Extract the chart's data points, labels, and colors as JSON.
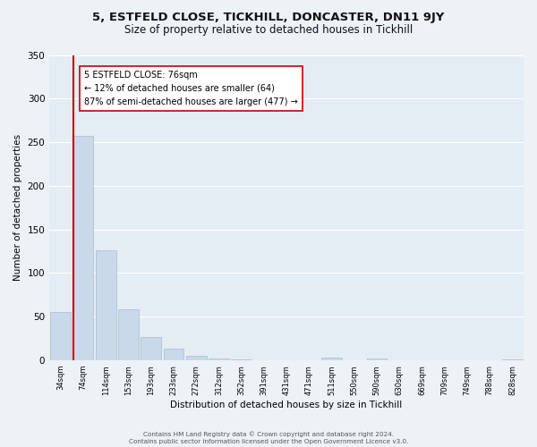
{
  "title": "5, ESTFELD CLOSE, TICKHILL, DONCASTER, DN11 9JY",
  "subtitle": "Size of property relative to detached houses in Tickhill",
  "xlabel": "Distribution of detached houses by size in Tickhill",
  "ylabel": "Number of detached properties",
  "bar_labels": [
    "34sqm",
    "74sqm",
    "114sqm",
    "153sqm",
    "193sqm",
    "233sqm",
    "272sqm",
    "312sqm",
    "352sqm",
    "391sqm",
    "431sqm",
    "471sqm",
    "511sqm",
    "550sqm",
    "590sqm",
    "630sqm",
    "669sqm",
    "709sqm",
    "749sqm",
    "788sqm",
    "828sqm"
  ],
  "bar_values": [
    55,
    257,
    126,
    58,
    27,
    13,
    5,
    2,
    1,
    0,
    0,
    0,
    3,
    0,
    2,
    0,
    0,
    0,
    0,
    0,
    1
  ],
  "bar_color": "#c9d9ea",
  "bar_edge_color": "#aabccc",
  "ylim": [
    0,
    350
  ],
  "yticks": [
    0,
    50,
    100,
    150,
    200,
    250,
    300,
    350
  ],
  "property_line_color": "#cc0000",
  "annotation_line1": "5 ESTFELD CLOSE: 76sqm",
  "annotation_line2": "← 12% of detached houses are smaller (64)",
  "annotation_line3": "87% of semi-detached houses are larger (477) →",
  "annotation_box_color": "#ffffff",
  "annotation_box_edge": "#cc0000",
  "footer_line1": "Contains HM Land Registry data © Crown copyright and database right 2024.",
  "footer_line2": "Contains public sector information licensed under the Open Government Licence v3.0.",
  "background_color": "#edf2f7",
  "plot_background": "#e4ecf4",
  "grid_color": "#ffffff",
  "title_fontsize": 9.5,
  "subtitle_fontsize": 8.5,
  "ylabel_text": "Number of detached properties"
}
